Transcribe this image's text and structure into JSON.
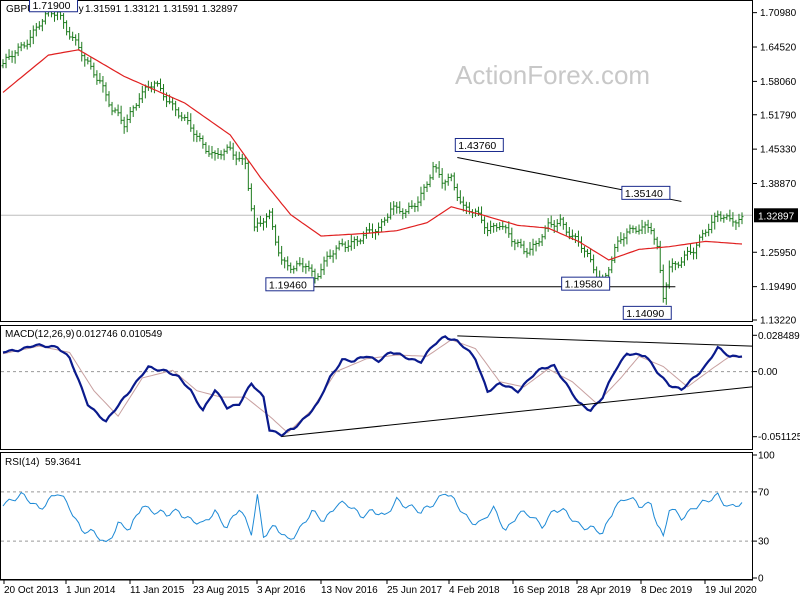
{
  "header": {
    "price_title": "GBPUSD Weekly",
    "price_ohlc": "1.31591 1.33121 1.31591 1.32897",
    "macd_title": "MACD(12,26,9)",
    "macd_values": "0.012746 0.010549",
    "rsi_title": "RSI(14)",
    "rsi_value": "59.3641"
  },
  "watermark": "ActionForex.com",
  "colors": {
    "bars": "#1c7a1c",
    "sma": "#e02020",
    "macd": "#0a1a8c",
    "signal": "#c8a0a0",
    "rsi": "#1e8ad6",
    "trend": "#000000",
    "current_price_bg": "#000000"
  },
  "chart_data": [
    {
      "type": "ohlc",
      "name": "price",
      "ylim": [
        1.1322,
        1.7298
      ],
      "y_ticks": [
        "1.70980",
        "1.64520",
        "1.58060",
        "1.51790",
        "1.45330",
        "1.38870",
        "1.25950",
        "1.19490",
        "1.13220"
      ],
      "y_tick_values": [
        1.7098,
        1.6452,
        1.5806,
        1.5179,
        1.4533,
        1.3887,
        1.2595,
        1.1949,
        1.1322
      ],
      "current_price": 1.32897,
      "current_price_label": "1.32897",
      "close_anchors": [
        [
          0,
          1.61
        ],
        [
          8,
          1.66
        ],
        [
          14,
          1.7
        ],
        [
          18,
          1.715
        ],
        [
          22,
          1.67
        ],
        [
          27,
          1.62
        ],
        [
          32,
          1.585
        ],
        [
          36,
          1.525
        ],
        [
          40,
          1.5
        ],
        [
          45,
          1.555
        ],
        [
          50,
          1.575
        ],
        [
          55,
          1.545
        ],
        [
          60,
          1.505
        ],
        [
          65,
          1.47
        ],
        [
          70,
          1.44
        ],
        [
          75,
          1.45
        ],
        [
          80,
          1.43
        ],
        [
          83,
          1.3
        ],
        [
          88,
          1.33
        ],
        [
          92,
          1.245
        ],
        [
          96,
          1.225
        ],
        [
          100,
          1.238
        ],
        [
          103,
          1.215
        ],
        [
          107,
          1.245
        ],
        [
          112,
          1.275
        ],
        [
          118,
          1.285
        ],
        [
          124,
          1.305
        ],
        [
          128,
          1.345
        ],
        [
          133,
          1.33
        ],
        [
          137,
          1.36
        ],
        [
          140,
          1.392
        ],
        [
          142,
          1.418
        ],
        [
          145,
          1.39
        ],
        [
          148,
          1.4
        ],
        [
          152,
          1.345
        ],
        [
          156,
          1.33
        ],
        [
          160,
          1.305
        ],
        [
          164,
          1.315
        ],
        [
          168,
          1.28
        ],
        [
          172,
          1.265
        ],
        [
          176,
          1.275
        ],
        [
          180,
          1.305
        ],
        [
          184,
          1.32
        ],
        [
          188,
          1.29
        ],
        [
          192,
          1.26
        ],
        [
          195,
          1.23
        ],
        [
          198,
          1.202
        ],
        [
          202,
          1.262
        ],
        [
          206,
          1.298
        ],
        [
          210,
          1.31
        ],
        [
          214,
          1.302
        ],
        [
          216,
          1.262
        ],
        [
          218,
          1.175
        ],
        [
          220,
          1.235
        ],
        [
          224,
          1.245
        ],
        [
          228,
          1.26
        ],
        [
          232,
          1.305
        ],
        [
          236,
          1.33
        ],
        [
          240,
          1.315
        ],
        [
          244,
          1.325
        ]
      ],
      "sma_anchors": [
        [
          0,
          1.56
        ],
        [
          15,
          1.63
        ],
        [
          25,
          1.64
        ],
        [
          40,
          1.59
        ],
        [
          60,
          1.54
        ],
        [
          75,
          1.48
        ],
        [
          85,
          1.4
        ],
        [
          95,
          1.33
        ],
        [
          105,
          1.29
        ],
        [
          120,
          1.295
        ],
        [
          130,
          1.3
        ],
        [
          140,
          1.315
        ],
        [
          148,
          1.345
        ],
        [
          158,
          1.33
        ],
        [
          170,
          1.31
        ],
        [
          180,
          1.305
        ],
        [
          190,
          1.28
        ],
        [
          200,
          1.245
        ],
        [
          210,
          1.265
        ],
        [
          220,
          1.27
        ],
        [
          232,
          1.28
        ],
        [
          244,
          1.275
        ]
      ],
      "bar_count": 245,
      "annotations": [
        "1.71900",
        "1.43760",
        "1.35140",
        "1.19460",
        "1.19580",
        "1.14090"
      ],
      "annotation_values": [
        1.719,
        1.4376,
        1.3514,
        1.1946,
        1.1958,
        1.1409
      ],
      "annotation_bars": [
        18,
        150,
        205,
        100,
        197,
        218
      ]
    },
    {
      "type": "line",
      "name": "MACD(12,26,9)",
      "ylim": [
        -0.06,
        0.035
      ],
      "y_ticks": [
        "0.028489",
        "0.00",
        "-0.051125"
      ],
      "y_tick_values": [
        0.028489,
        0.0,
        -0.051125
      ],
      "macd_anchors": [
        [
          0,
          0.015
        ],
        [
          10,
          0.02
        ],
        [
          18,
          0.02
        ],
        [
          22,
          0.01
        ],
        [
          28,
          -0.025
        ],
        [
          34,
          -0.04
        ],
        [
          40,
          -0.02
        ],
        [
          48,
          0.003
        ],
        [
          54,
          0.001
        ],
        [
          58,
          -0.005
        ],
        [
          62,
          -0.015
        ],
        [
          66,
          -0.03
        ],
        [
          70,
          -0.015
        ],
        [
          74,
          -0.028
        ],
        [
          78,
          -0.025
        ],
        [
          82,
          -0.01
        ],
        [
          86,
          -0.02
        ],
        [
          88,
          -0.045
        ],
        [
          92,
          -0.05
        ],
        [
          96,
          -0.045
        ],
        [
          100,
          -0.035
        ],
        [
          104,
          -0.025
        ],
        [
          108,
          -0.005
        ],
        [
          112,
          0.01
        ],
        [
          116,
          0.008
        ],
        [
          120,
          0.012
        ],
        [
          124,
          0.009
        ],
        [
          128,
          0.015
        ],
        [
          132,
          0.012
        ],
        [
          138,
          0.008
        ],
        [
          142,
          0.02
        ],
        [
          146,
          0.028
        ],
        [
          150,
          0.024
        ],
        [
          156,
          0.01
        ],
        [
          160,
          -0.015
        ],
        [
          164,
          -0.01
        ],
        [
          170,
          -0.015
        ],
        [
          174,
          -0.005
        ],
        [
          178,
          0.002
        ],
        [
          182,
          0.005
        ],
        [
          186,
          -0.01
        ],
        [
          190,
          -0.025
        ],
        [
          194,
          -0.03
        ],
        [
          198,
          -0.02
        ],
        [
          202,
          0.0
        ],
        [
          206,
          0.015
        ],
        [
          212,
          0.012
        ],
        [
          216,
          0.0
        ],
        [
          220,
          -0.01
        ],
        [
          224,
          -0.015
        ],
        [
          228,
          -0.005
        ],
        [
          232,
          0.005
        ],
        [
          236,
          0.018
        ],
        [
          240,
          0.012
        ],
        [
          244,
          0.013
        ]
      ],
      "signal_anchors": [
        [
          0,
          0.014
        ],
        [
          12,
          0.02
        ],
        [
          22,
          0.015
        ],
        [
          30,
          -0.015
        ],
        [
          38,
          -0.035
        ],
        [
          46,
          -0.005
        ],
        [
          56,
          0.001
        ],
        [
          64,
          -0.015
        ],
        [
          72,
          -0.02
        ],
        [
          80,
          -0.02
        ],
        [
          88,
          -0.035
        ],
        [
          94,
          -0.048
        ],
        [
          102,
          -0.03
        ],
        [
          110,
          0.0
        ],
        [
          120,
          0.01
        ],
        [
          130,
          0.013
        ],
        [
          140,
          0.012
        ],
        [
          148,
          0.025
        ],
        [
          156,
          0.018
        ],
        [
          164,
          -0.008
        ],
        [
          172,
          -0.012
        ],
        [
          180,
          0.002
        ],
        [
          188,
          -0.008
        ],
        [
          196,
          -0.025
        ],
        [
          204,
          -0.005
        ],
        [
          210,
          0.012
        ],
        [
          218,
          0.004
        ],
        [
          226,
          -0.012
        ],
        [
          234,
          0.002
        ],
        [
          240,
          0.012
        ],
        [
          244,
          0.011
        ]
      ],
      "trendlines": [
        [
          [
            150,
            0.028
          ],
          [
            244,
            0.02
          ]
        ],
        [
          [
            92,
            -0.051
          ],
          [
            244,
            -0.012
          ]
        ]
      ]
    },
    {
      "type": "line",
      "name": "RSI(14)",
      "ylim": [
        0,
        100
      ],
      "y_ticks": [
        "100",
        "70",
        "30",
        "0"
      ],
      "y_tick_values": [
        100,
        70,
        30,
        0
      ],
      "level_lines": [
        70,
        30
      ],
      "rsi_anchors": [
        [
          0,
          62
        ],
        [
          6,
          66
        ],
        [
          12,
          58
        ],
        [
          18,
          68
        ],
        [
          22,
          58
        ],
        [
          26,
          40
        ],
        [
          30,
          35
        ],
        [
          34,
          28
        ],
        [
          38,
          45
        ],
        [
          42,
          38
        ],
        [
          46,
          60
        ],
        [
          50,
          55
        ],
        [
          54,
          50
        ],
        [
          58,
          55
        ],
        [
          62,
          48
        ],
        [
          66,
          42
        ],
        [
          70,
          55
        ],
        [
          74,
          42
        ],
        [
          78,
          55
        ],
        [
          82,
          38
        ],
        [
          84,
          68
        ],
        [
          86,
          35
        ],
        [
          90,
          40
        ],
        [
          94,
          32
        ],
        [
          98,
          40
        ],
        [
          102,
          52
        ],
        [
          106,
          48
        ],
        [
          110,
          60
        ],
        [
          114,
          58
        ],
        [
          118,
          52
        ],
        [
          122,
          55
        ],
        [
          126,
          48
        ],
        [
          130,
          65
        ],
        [
          134,
          58
        ],
        [
          138,
          52
        ],
        [
          142,
          62
        ],
        [
          146,
          70
        ],
        [
          150,
          58
        ],
        [
          154,
          48
        ],
        [
          158,
          45
        ],
        [
          162,
          55
        ],
        [
          166,
          40
        ],
        [
          170,
          52
        ],
        [
          174,
          50
        ],
        [
          178,
          44
        ],
        [
          182,
          55
        ],
        [
          186,
          52
        ],
        [
          190,
          45
        ],
        [
          194,
          40
        ],
        [
          198,
          35
        ],
        [
          202,
          60
        ],
        [
          206,
          65
        ],
        [
          210,
          58
        ],
        [
          214,
          62
        ],
        [
          216,
          45
        ],
        [
          218,
          32
        ],
        [
          220,
          55
        ],
        [
          224,
          50
        ],
        [
          228,
          58
        ],
        [
          232,
          60
        ],
        [
          236,
          68
        ],
        [
          240,
          58
        ],
        [
          244,
          59
        ]
      ]
    }
  ],
  "x_axis": {
    "labels": [
      "20 Oct 2013",
      "1 Jun 2014",
      "11 Jan 2015",
      "23 Aug 2015",
      "3 Apr 2016",
      "13 Nov 2016",
      "25 Jun 2017",
      "4 Feb 2018",
      "16 Sep 2018",
      "28 Apr 2019",
      "8 Dec 2019",
      "19 Jul 2020"
    ],
    "label_bars": [
      0,
      32,
      64,
      96,
      128,
      160,
      192,
      224,
      256,
      288,
      320,
      352
    ]
  }
}
